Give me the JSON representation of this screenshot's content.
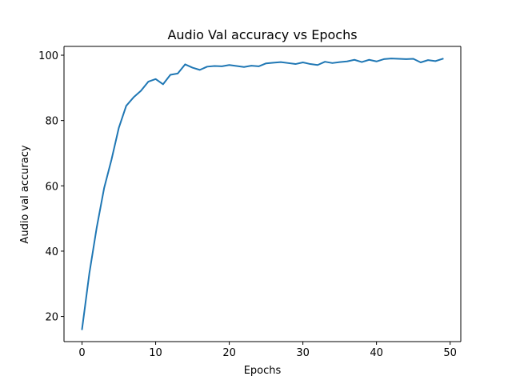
{
  "chart_data": {
    "type": "line",
    "title": "Audio Val accuracy vs Epochs",
    "xlabel": "Epochs",
    "ylabel": "Audio val accuracy",
    "xlim": [
      -2.45,
      51.45
    ],
    "ylim": [
      12.3,
      102.7
    ],
    "xticks": [
      0,
      10,
      20,
      30,
      40,
      50
    ],
    "yticks": [
      20,
      40,
      60,
      80,
      100
    ],
    "grid": false,
    "legend": "none",
    "series": [
      {
        "color": "#1f77b4",
        "x": [
          0,
          1,
          2,
          3,
          4,
          5,
          6,
          7,
          8,
          9,
          10,
          11,
          12,
          13,
          14,
          15,
          16,
          17,
          18,
          19,
          20,
          21,
          22,
          23,
          24,
          25,
          26,
          27,
          28,
          29,
          30,
          31,
          32,
          33,
          34,
          35,
          36,
          37,
          38,
          39,
          40,
          41,
          42,
          43,
          44,
          45,
          46,
          47,
          48,
          49
        ],
        "y": [
          16.1,
          33.3,
          47.3,
          59.3,
          68.0,
          77.8,
          84.5,
          87.1,
          89.1,
          91.9,
          92.7,
          91.1,
          94.0,
          94.4,
          97.2,
          96.2,
          95.5,
          96.5,
          96.7,
          96.6,
          97.0,
          96.7,
          96.4,
          96.8,
          96.6,
          97.5,
          97.7,
          97.9,
          97.6,
          97.3,
          97.8,
          97.3,
          97.0,
          98.0,
          97.6,
          97.9,
          98.1,
          98.6,
          97.9,
          98.6,
          98.1,
          98.8,
          99.0,
          98.9,
          98.8,
          98.9,
          97.8,
          98.5,
          98.2,
          98.9
        ]
      }
    ]
  }
}
